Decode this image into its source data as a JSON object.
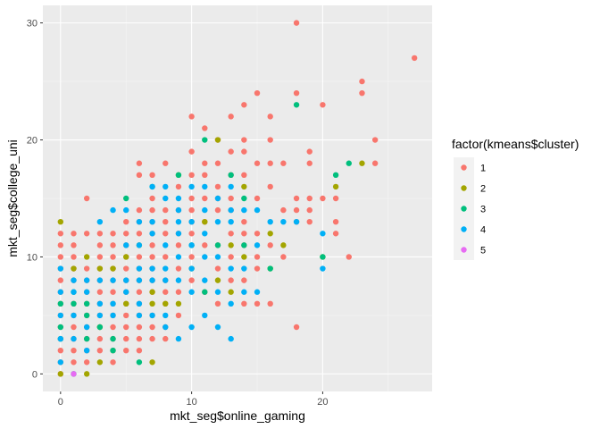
{
  "chart_data": {
    "type": "scatter",
    "title": "",
    "xlabel": "mkt_seg$online_gaming",
    "ylabel": "mkt_seg$college_uni",
    "xlim": [
      -1.35,
      28.35
    ],
    "ylim": [
      -1.5,
      31.5
    ],
    "x_ticks": [
      0,
      10,
      20
    ],
    "y_ticks": [
      0,
      10,
      20,
      30
    ],
    "x_tick_labels": [
      "0",
      "10",
      "20"
    ],
    "y_tick_labels": [
      "0",
      "10",
      "20",
      "30"
    ],
    "grid": true,
    "legend": {
      "title": "factor(kmeans$cluster)",
      "placement": "right"
    },
    "series": [
      {
        "name": "1",
        "color": "#F8766D",
        "points": [
          [
            0,
            0
          ],
          [
            0,
            1
          ],
          [
            0,
            2
          ],
          [
            0,
            3
          ],
          [
            0,
            4
          ],
          [
            0,
            5
          ],
          [
            0,
            6
          ],
          [
            0,
            7
          ],
          [
            0,
            8
          ],
          [
            0,
            9
          ],
          [
            0,
            10
          ],
          [
            0,
            11
          ],
          [
            0,
            12
          ],
          [
            1,
            1
          ],
          [
            1,
            2
          ],
          [
            1,
            3
          ],
          [
            1,
            4
          ],
          [
            1,
            5
          ],
          [
            1,
            6
          ],
          [
            1,
            8
          ],
          [
            1,
            9
          ],
          [
            1,
            10
          ],
          [
            1,
            11
          ],
          [
            1,
            12
          ],
          [
            2,
            1
          ],
          [
            2,
            2
          ],
          [
            2,
            3
          ],
          [
            2,
            4
          ],
          [
            2,
            5
          ],
          [
            2,
            6
          ],
          [
            2,
            7
          ],
          [
            2,
            8
          ],
          [
            2,
            9
          ],
          [
            2,
            12
          ],
          [
            2,
            15
          ],
          [
            3,
            2
          ],
          [
            3,
            3
          ],
          [
            3,
            4
          ],
          [
            3,
            5
          ],
          [
            3,
            6
          ],
          [
            3,
            7
          ],
          [
            3,
            8
          ],
          [
            3,
            9
          ],
          [
            3,
            10
          ],
          [
            3,
            11
          ],
          [
            3,
            12
          ],
          [
            4,
            1
          ],
          [
            4,
            2
          ],
          [
            4,
            3
          ],
          [
            4,
            4
          ],
          [
            4,
            5
          ],
          [
            4,
            6
          ],
          [
            4,
            7
          ],
          [
            4,
            8
          ],
          [
            4,
            9
          ],
          [
            4,
            10
          ],
          [
            4,
            11
          ],
          [
            4,
            12
          ],
          [
            5,
            2
          ],
          [
            5,
            3
          ],
          [
            5,
            4
          ],
          [
            5,
            5
          ],
          [
            5,
            6
          ],
          [
            5,
            7
          ],
          [
            5,
            8
          ],
          [
            5,
            9
          ],
          [
            5,
            10
          ],
          [
            5,
            11
          ],
          [
            5,
            12
          ],
          [
            5,
            13
          ],
          [
            6,
            2
          ],
          [
            6,
            3
          ],
          [
            6,
            4
          ],
          [
            6,
            5
          ],
          [
            6,
            6
          ],
          [
            6,
            7
          ],
          [
            6,
            8
          ],
          [
            6,
            9
          ],
          [
            6,
            10
          ],
          [
            6,
            12
          ],
          [
            6,
            13
          ],
          [
            6,
            14
          ],
          [
            6,
            17
          ],
          [
            6,
            18
          ],
          [
            7,
            3
          ],
          [
            7,
            4
          ],
          [
            7,
            5
          ],
          [
            7,
            7
          ],
          [
            7,
            8
          ],
          [
            7,
            9
          ],
          [
            7,
            10
          ],
          [
            7,
            11
          ],
          [
            7,
            12
          ],
          [
            7,
            13
          ],
          [
            7,
            14
          ],
          [
            7,
            15
          ],
          [
            7,
            17
          ],
          [
            8,
            3
          ],
          [
            8,
            4
          ],
          [
            8,
            6
          ],
          [
            8,
            7
          ],
          [
            8,
            8
          ],
          [
            8,
            10
          ],
          [
            8,
            12
          ],
          [
            8,
            13
          ],
          [
            8,
            14
          ],
          [
            8,
            18
          ],
          [
            9,
            5
          ],
          [
            9,
            7
          ],
          [
            9,
            9
          ],
          [
            9,
            11
          ],
          [
            9,
            12
          ],
          [
            9,
            14
          ],
          [
            9,
            16
          ],
          [
            10,
            8
          ],
          [
            10,
            10
          ],
          [
            10,
            12
          ],
          [
            10,
            13
          ],
          [
            10,
            14
          ],
          [
            10,
            15
          ],
          [
            10,
            17
          ],
          [
            10,
            19
          ],
          [
            10,
            22
          ],
          [
            11,
            7
          ],
          [
            11,
            11
          ],
          [
            11,
            13
          ],
          [
            11,
            15
          ],
          [
            11,
            17
          ],
          [
            11,
            18
          ],
          [
            11,
            21
          ],
          [
            12,
            6
          ],
          [
            12,
            9
          ],
          [
            12,
            11
          ],
          [
            12,
            14
          ],
          [
            12,
            15
          ],
          [
            12,
            16
          ],
          [
            12,
            18
          ],
          [
            12,
            20
          ],
          [
            13,
            8
          ],
          [
            13,
            10
          ],
          [
            13,
            12
          ],
          [
            13,
            14
          ],
          [
            13,
            15
          ],
          [
            13,
            17
          ],
          [
            13,
            19
          ],
          [
            13,
            22
          ],
          [
            14,
            6
          ],
          [
            14,
            8
          ],
          [
            14,
            11
          ],
          [
            14,
            12
          ],
          [
            14,
            13
          ],
          [
            14,
            17
          ],
          [
            14,
            19
          ],
          [
            14,
            20
          ],
          [
            14,
            23
          ],
          [
            15,
            6
          ],
          [
            15,
            9
          ],
          [
            15,
            10
          ],
          [
            15,
            12
          ],
          [
            15,
            15
          ],
          [
            15,
            18
          ],
          [
            15,
            24
          ],
          [
            16,
            6
          ],
          [
            16,
            11
          ],
          [
            16,
            16
          ],
          [
            16,
            18
          ],
          [
            16,
            20
          ],
          [
            16,
            22
          ],
          [
            17,
            10
          ],
          [
            17,
            14
          ],
          [
            17,
            18
          ],
          [
            18,
            4
          ],
          [
            18,
            13
          ],
          [
            18,
            14
          ],
          [
            18,
            15
          ],
          [
            18,
            24
          ],
          [
            18,
            30
          ],
          [
            19,
            13
          ],
          [
            19,
            14
          ],
          [
            19,
            15
          ],
          [
            19,
            18
          ],
          [
            19,
            19
          ],
          [
            20,
            15
          ],
          [
            20,
            23
          ],
          [
            21,
            12
          ],
          [
            21,
            13
          ],
          [
            21,
            15
          ],
          [
            22,
            10
          ],
          [
            23,
            24
          ],
          [
            23,
            25
          ],
          [
            24,
            18
          ],
          [
            24,
            20
          ],
          [
            27,
            27
          ]
        ]
      },
      {
        "name": "2",
        "color": "#A3A500",
        "points": [
          [
            0,
            13
          ],
          [
            0,
            0
          ],
          [
            1,
            9
          ],
          [
            2,
            0
          ],
          [
            2,
            10
          ],
          [
            3,
            4
          ],
          [
            3,
            9
          ],
          [
            3,
            1
          ],
          [
            4,
            9
          ],
          [
            5,
            6
          ],
          [
            5,
            10
          ],
          [
            6,
            11
          ],
          [
            7,
            1
          ],
          [
            7,
            6
          ],
          [
            7,
            7
          ],
          [
            8,
            6
          ],
          [
            9,
            6
          ],
          [
            9,
            17
          ],
          [
            10,
            9
          ],
          [
            11,
            13
          ],
          [
            12,
            20
          ],
          [
            12,
            8
          ],
          [
            13,
            11
          ],
          [
            13,
            7
          ],
          [
            14,
            16
          ],
          [
            14,
            10
          ],
          [
            16,
            9
          ],
          [
            16,
            12
          ],
          [
            17,
            11
          ],
          [
            21,
            16
          ],
          [
            23,
            18
          ],
          [
            20,
            10
          ]
        ]
      },
      {
        "name": "3",
        "color": "#00BF7D",
        "points": [
          [
            0,
            3
          ],
          [
            0,
            4
          ],
          [
            0,
            6
          ],
          [
            1,
            6
          ],
          [
            1,
            7
          ],
          [
            1,
            0
          ],
          [
            2,
            5
          ],
          [
            2,
            6
          ],
          [
            2,
            3
          ],
          [
            3,
            4
          ],
          [
            4,
            3
          ],
          [
            4,
            2
          ],
          [
            5,
            15
          ],
          [
            6,
            1
          ],
          [
            7,
            16
          ],
          [
            9,
            17
          ],
          [
            10,
            11
          ],
          [
            11,
            7
          ],
          [
            11,
            20
          ],
          [
            12,
            11
          ],
          [
            13,
            17
          ],
          [
            14,
            15
          ],
          [
            14,
            11
          ],
          [
            16,
            9
          ],
          [
            18,
            23
          ],
          [
            20,
            10
          ],
          [
            21,
            17
          ],
          [
            22,
            18
          ]
        ]
      },
      {
        "name": "4",
        "color": "#00B0F6",
        "points": [
          [
            0,
            1
          ],
          [
            0,
            3
          ],
          [
            0,
            5
          ],
          [
            0,
            7
          ],
          [
            0,
            9
          ],
          [
            1,
            3
          ],
          [
            1,
            5
          ],
          [
            1,
            7
          ],
          [
            1,
            8
          ],
          [
            2,
            2
          ],
          [
            2,
            4
          ],
          [
            2,
            7
          ],
          [
            2,
            8
          ],
          [
            3,
            5
          ],
          [
            3,
            6
          ],
          [
            3,
            8
          ],
          [
            3,
            13
          ],
          [
            4,
            5
          ],
          [
            4,
            6
          ],
          [
            4,
            8
          ],
          [
            4,
            14
          ],
          [
            5,
            7
          ],
          [
            5,
            8
          ],
          [
            5,
            11
          ],
          [
            5,
            14
          ],
          [
            6,
            5
          ],
          [
            6,
            6
          ],
          [
            6,
            8
          ],
          [
            6,
            9
          ],
          [
            6,
            11
          ],
          [
            6,
            13
          ],
          [
            7,
            5
          ],
          [
            7,
            8
          ],
          [
            7,
            9
          ],
          [
            7,
            12
          ],
          [
            7,
            13
          ],
          [
            7,
            16
          ],
          [
            8,
            4
          ],
          [
            8,
            5
          ],
          [
            8,
            8
          ],
          [
            8,
            9
          ],
          [
            8,
            11
          ],
          [
            8,
            15
          ],
          [
            8,
            16
          ],
          [
            9,
            3
          ],
          [
            9,
            8
          ],
          [
            9,
            10
          ],
          [
            9,
            12
          ],
          [
            9,
            13
          ],
          [
            9,
            14
          ],
          [
            9,
            15
          ],
          [
            10,
            4
          ],
          [
            10,
            7
          ],
          [
            10,
            9
          ],
          [
            10,
            11
          ],
          [
            10,
            13
          ],
          [
            10,
            16
          ],
          [
            11,
            5
          ],
          [
            11,
            8
          ],
          [
            11,
            10
          ],
          [
            11,
            12
          ],
          [
            11,
            14
          ],
          [
            11,
            16
          ],
          [
            12,
            4
          ],
          [
            12,
            7
          ],
          [
            12,
            10
          ],
          [
            12,
            13
          ],
          [
            12,
            15
          ],
          [
            13,
            3
          ],
          [
            13,
            6
          ],
          [
            13,
            9
          ],
          [
            13,
            13
          ],
          [
            13,
            14
          ],
          [
            13,
            16
          ],
          [
            14,
            7
          ],
          [
            14,
            9
          ],
          [
            14,
            14
          ],
          [
            15,
            7
          ],
          [
            15,
            11
          ],
          [
            15,
            14
          ],
          [
            16,
            13
          ],
          [
            17,
            13
          ],
          [
            18,
            13
          ],
          [
            20,
            9
          ],
          [
            20,
            12
          ]
        ]
      },
      {
        "name": "5",
        "color": "#E76BF3",
        "points": [
          [
            1,
            0
          ]
        ]
      }
    ]
  }
}
